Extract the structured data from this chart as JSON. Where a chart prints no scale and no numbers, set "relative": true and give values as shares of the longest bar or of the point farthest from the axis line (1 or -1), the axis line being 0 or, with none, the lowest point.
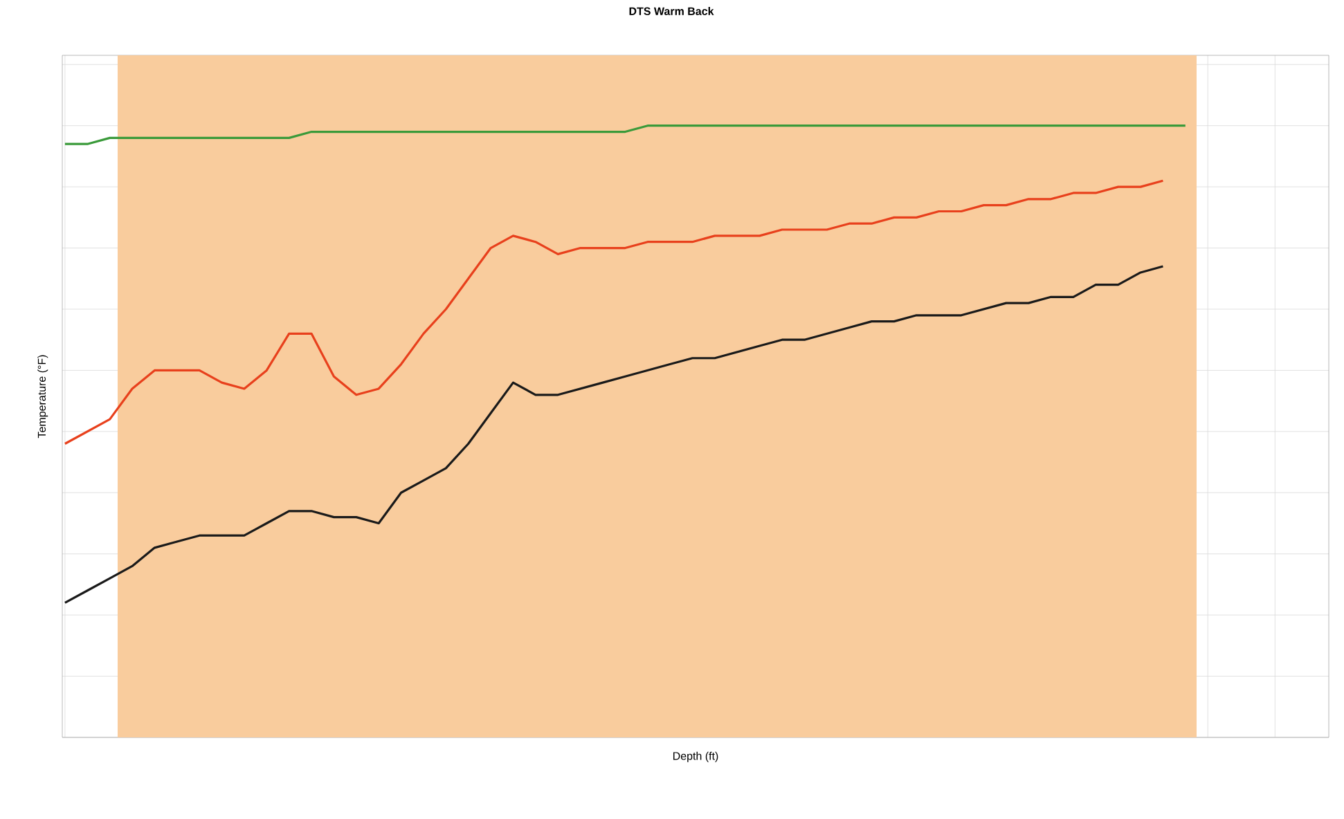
{
  "chart_data": {
    "type": "line",
    "title": "DTS Warm Back",
    "xlabel": "Depth (ft)",
    "ylabel": "Temperature (°F)",
    "relative": true,
    "grid": true,
    "categories": [
      null,
      null,
      null,
      null,
      null,
      null,
      null,
      null,
      null,
      null,
      null,
      null,
      null,
      null,
      null,
      null,
      null,
      null,
      null,
      null,
      null,
      null,
      null,
      null,
      null,
      null,
      null,
      null,
      null,
      null,
      null,
      null,
      null,
      null,
      null,
      null,
      null,
      null,
      null,
      null,
      null,
      null,
      null,
      null,
      null,
      null,
      null,
      null,
      null,
      null,
      null
    ],
    "series": [
      {
        "color": "#1a1a1a",
        "values": [
          0.22,
          0.24,
          0.26,
          0.28,
          0.31,
          0.32,
          0.33,
          0.33,
          0.33,
          0.35,
          0.37,
          0.37,
          0.36,
          0.36,
          0.35,
          0.4,
          0.42,
          0.44,
          0.48,
          0.53,
          0.58,
          0.56,
          0.56,
          0.57,
          0.58,
          0.59,
          0.6,
          0.61,
          0.62,
          0.62,
          0.63,
          0.64,
          0.65,
          0.65,
          0.66,
          0.67,
          0.68,
          0.68,
          0.69,
          0.69,
          0.69,
          0.7,
          0.71,
          0.71,
          0.72,
          0.72,
          0.74,
          0.74,
          0.76,
          0.77,
          null
        ]
      },
      {
        "color": "#e8401c",
        "values": [
          0.48,
          0.5,
          0.52,
          0.57,
          0.6,
          0.6,
          0.6,
          0.58,
          0.57,
          0.6,
          0.66,
          0.66,
          0.59,
          0.56,
          0.57,
          0.61,
          0.66,
          0.7,
          0.75,
          0.8,
          0.82,
          0.81,
          0.79,
          0.8,
          0.8,
          0.8,
          0.81,
          0.81,
          0.81,
          0.82,
          0.82,
          0.82,
          0.83,
          0.83,
          0.83,
          0.84,
          0.84,
          0.85,
          0.85,
          0.86,
          0.86,
          0.87,
          0.87,
          0.88,
          0.88,
          0.89,
          0.89,
          0.9,
          0.9,
          0.91,
          null
        ]
      },
      {
        "color": "#3a9a3a",
        "values": [
          0.97,
          0.97,
          0.98,
          0.98,
          0.98,
          0.98,
          0.98,
          0.98,
          0.98,
          0.98,
          0.98,
          0.99,
          0.99,
          0.99,
          0.99,
          0.99,
          0.99,
          0.99,
          0.99,
          0.99,
          0.99,
          0.99,
          0.99,
          0.99,
          0.99,
          0.99,
          1.0,
          1.0,
          1.0,
          1.0,
          1.0,
          1.0,
          1.0,
          1.0,
          1.0,
          1.0,
          1.0,
          1.0,
          1.0,
          1.0,
          1.0,
          1.0,
          1.0,
          1.0,
          1.0,
          1.0,
          1.0,
          1.0,
          1.0,
          1.0,
          1.0
        ]
      }
    ]
  }
}
